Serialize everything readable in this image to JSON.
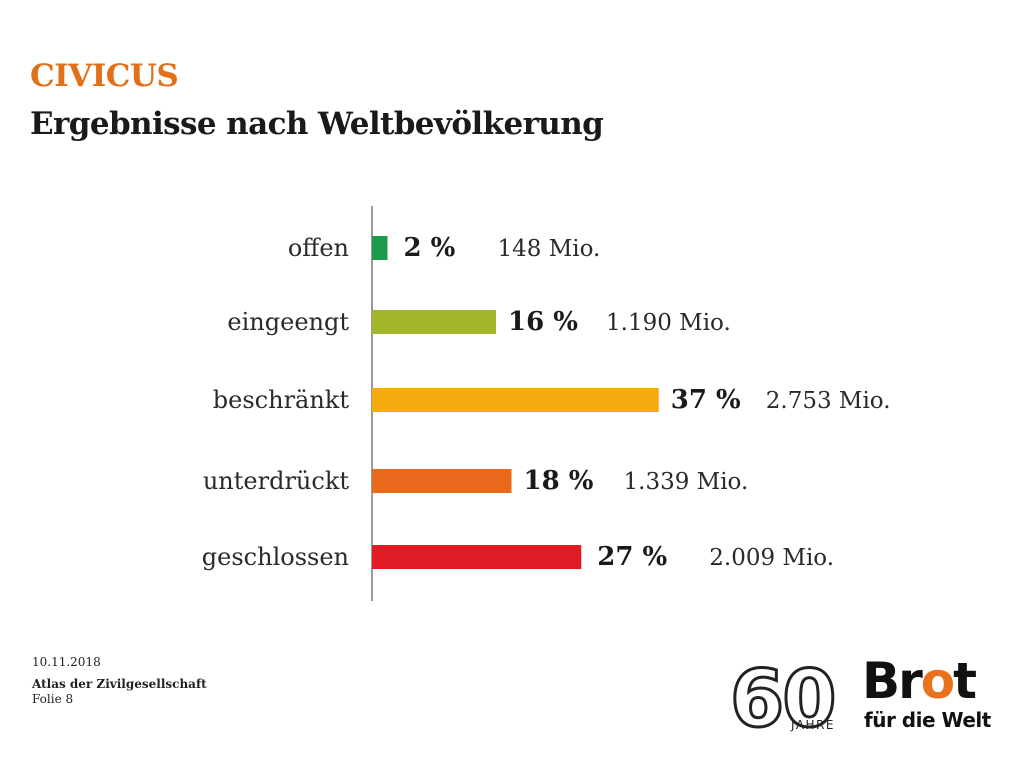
{
  "slide": {
    "title": "CIVICUS",
    "subtitle": "Ergebnisse nach Weltbevölkerung"
  },
  "chart_data": {
    "type": "bar",
    "orientation": "horizontal",
    "categories": [
      "offen",
      "eingeengt",
      "beschränkt",
      "unterdrückt",
      "geschlossen"
    ],
    "values": [
      2,
      16,
      37,
      18,
      27
    ],
    "value_labels": [
      "2 %",
      "16 %",
      "37 %",
      "18 %",
      "27 %"
    ],
    "population_labels": [
      "148 Mio.",
      "1.190 Mio.",
      "2.753 Mio.",
      "1.339 Mio.",
      "2.009 Mio."
    ],
    "population_mio": [
      148,
      1190,
      2753,
      1339,
      2009
    ],
    "colors": [
      "#1e9a4c",
      "#a3b62a",
      "#f5ab0e",
      "#e8681c",
      "#e01b24"
    ],
    "grid": false
  },
  "footer": {
    "date": "10.11.2018",
    "source": "Atlas der Zivilgesellschaft",
    "slide_number": "Folie 8"
  },
  "logo_60": {
    "number": "60",
    "label": "JAHRE"
  },
  "brand": {
    "line1_part1": "Br",
    "line1_accent": "o",
    "line1_part2": "t",
    "line2": "für die Welt",
    "accent_color": "#e8731c"
  }
}
